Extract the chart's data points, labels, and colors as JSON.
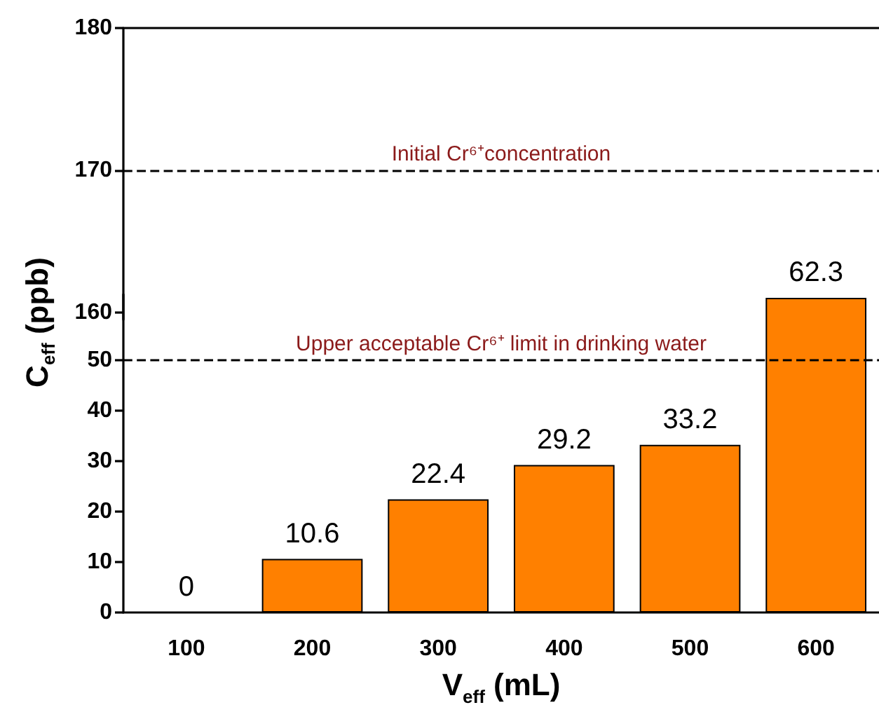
{
  "chart_data": [
    {
      "type": "bar",
      "categories": [
        "100",
        "200",
        "300",
        "400",
        "500",
        "600"
      ],
      "values": [
        null,
        null,
        null,
        null,
        null,
        null
      ],
      "color": "#ff8000",
      "ylim": [
        159.5,
        180
      ],
      "yticks": [
        160,
        170,
        180
      ],
      "tick_labels": "y",
      "grid": false,
      "ref_lines": [
        {
          "axis": "y",
          "value": 170,
          "label": "Initial Cr⁶⁺concentration",
          "line_style": "dashed"
        }
      ]
    },
    {
      "type": "bar",
      "categories": [
        "100",
        "200",
        "300",
        "400",
        "500",
        "600"
      ],
      "values": [
        0,
        10.6,
        22.4,
        29.2,
        33.2,
        62.3
      ],
      "color": "#ff8000",
      "ylim": [
        0,
        63
      ],
      "yticks": [
        0,
        10,
        20,
        30,
        40,
        50
      ],
      "xlabel": "V$_{eff}$ (mL)",
      "ylabel": "C$_{eff}$ (ppb)",
      "data_labels": true,
      "grid": false,
      "ref_lines": [
        {
          "axis": "y",
          "value": 50,
          "label": "Upper acceptable Cr⁶⁺ limit in drinking water",
          "line_style": "dashed"
        }
      ]
    }
  ]
}
